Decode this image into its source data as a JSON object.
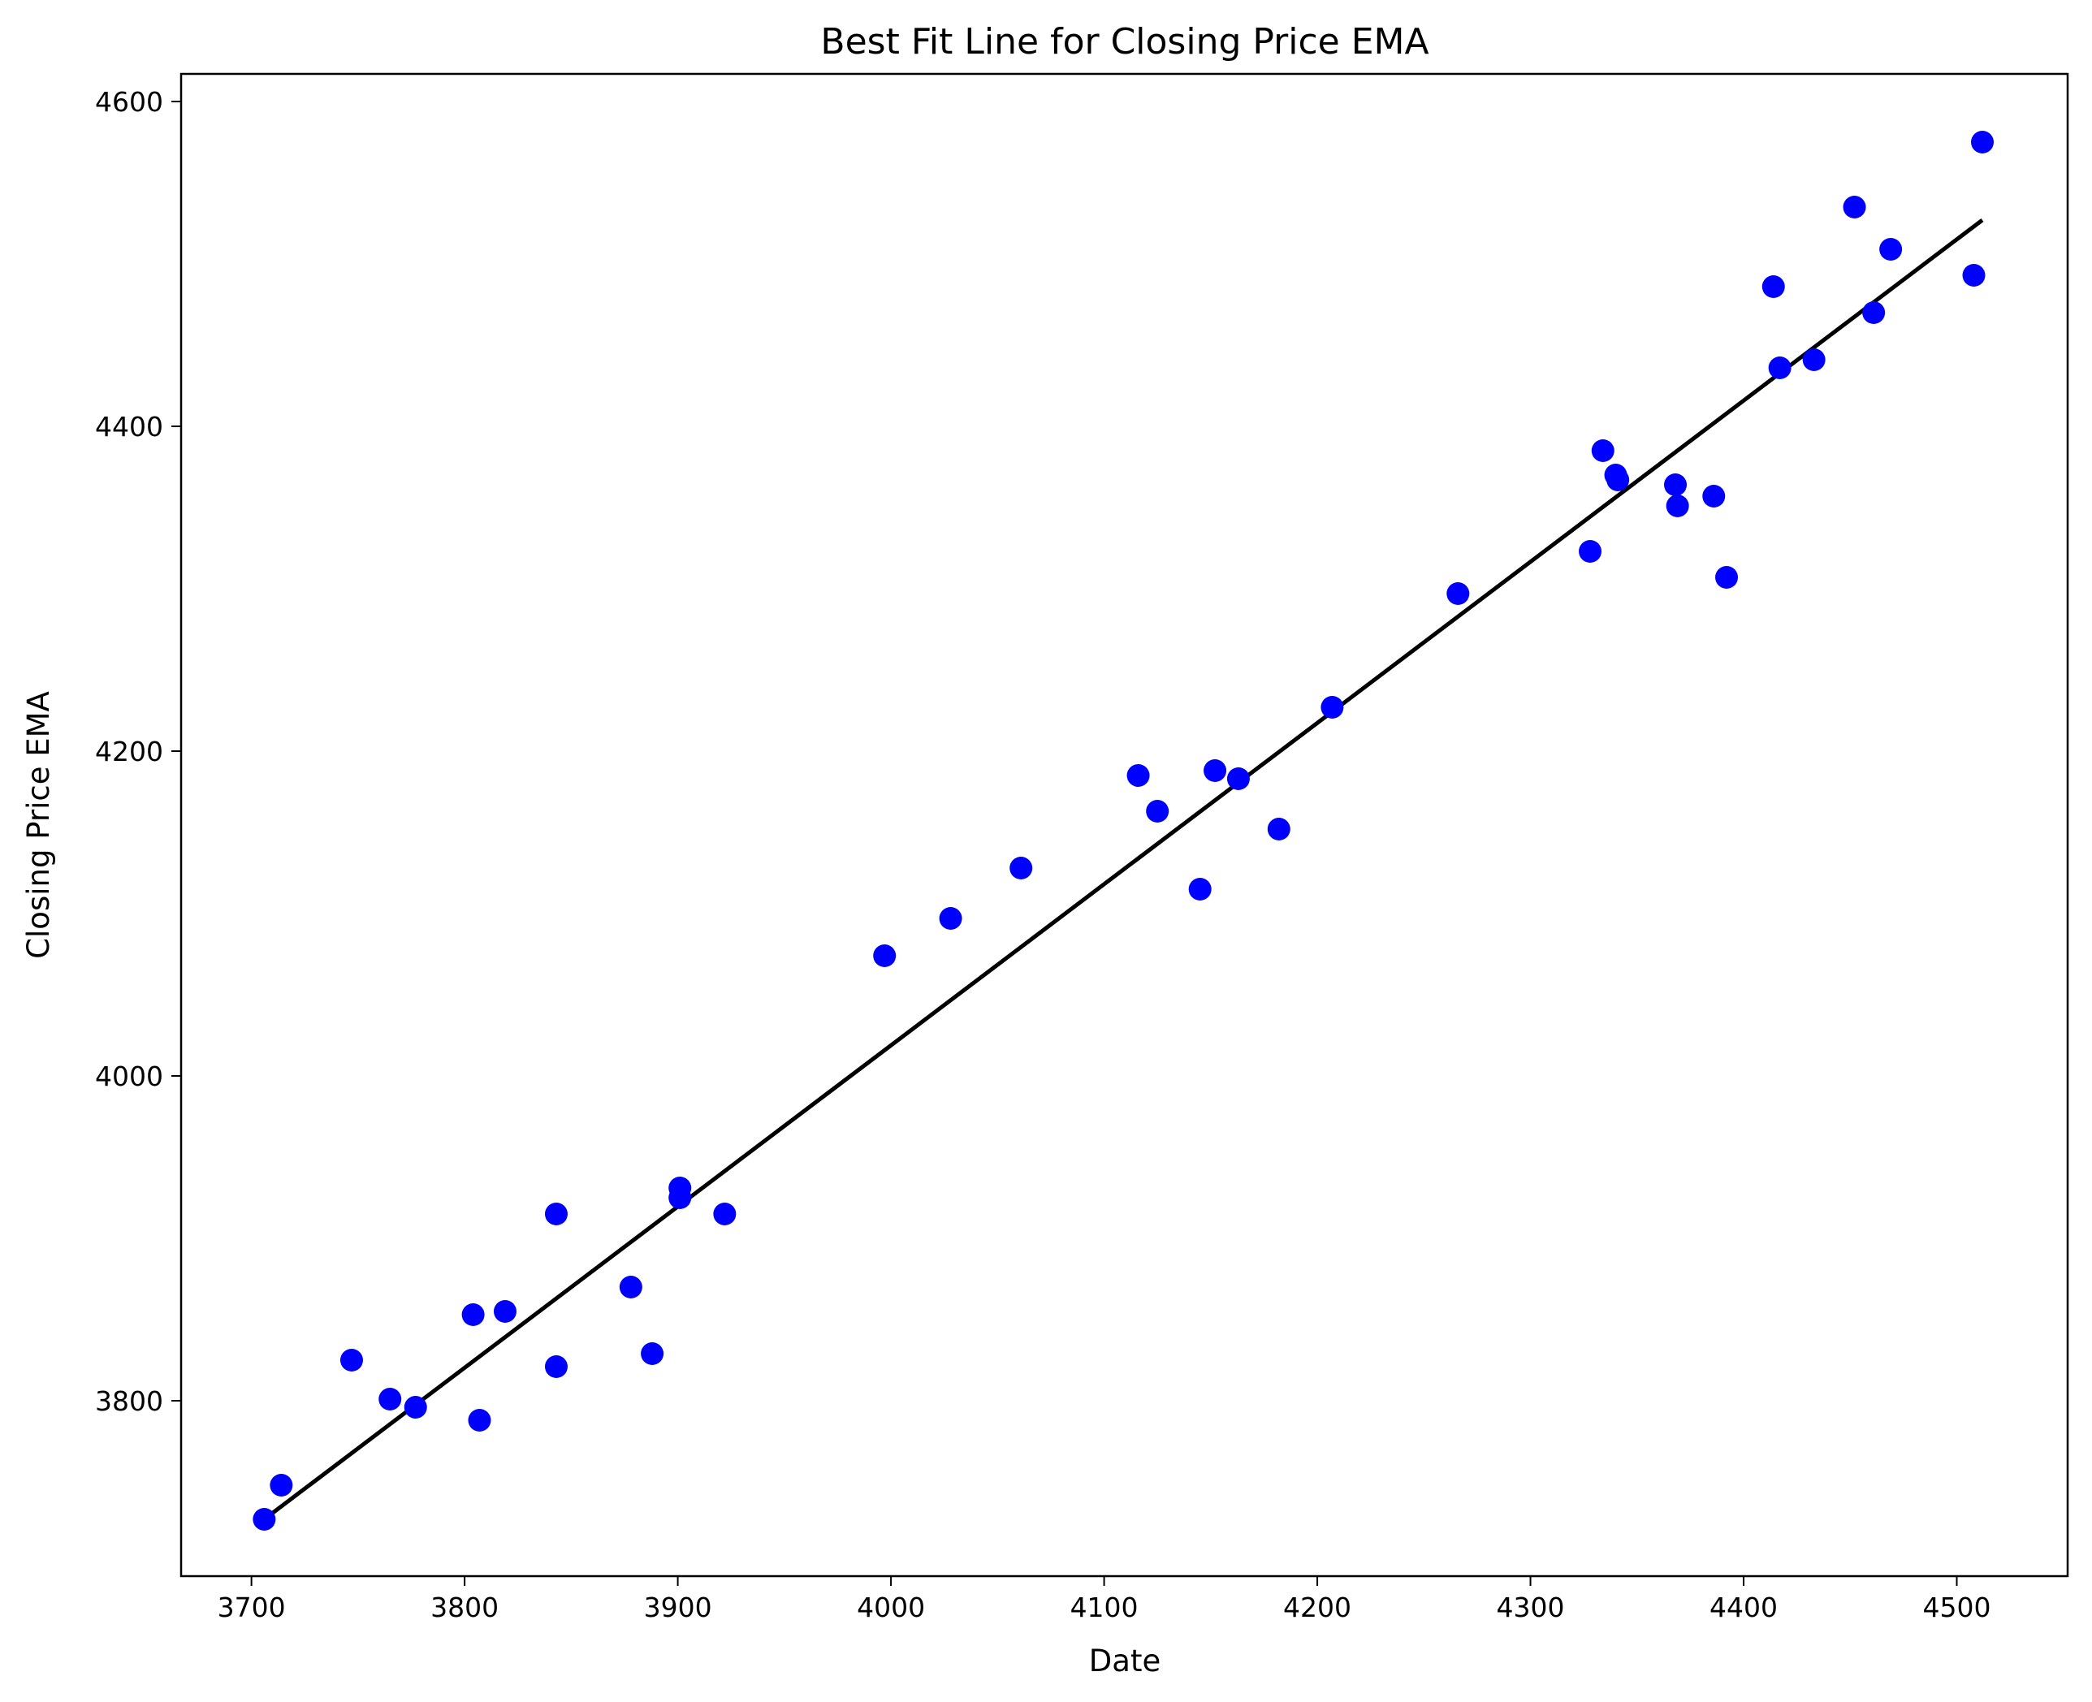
{
  "chart_data": {
    "type": "scatter",
    "title": "Best Fit Line for Closing Price EMA",
    "xlabel": "Date",
    "ylabel": "Closing Price EMA",
    "xlim": [
      3667,
      4552
    ],
    "ylim": [
      3692,
      4617
    ],
    "xticks": [
      3700,
      3800,
      3900,
      4000,
      4100,
      4200,
      4300,
      4400,
      4500
    ],
    "yticks": [
      3800,
      4000,
      4200,
      4400,
      4600
    ],
    "grid": false,
    "point_color": "#0000ff",
    "line_color": "#000000",
    "points": [
      {
        "x": 3706,
        "y": 3727
      },
      {
        "x": 3714,
        "y": 3748
      },
      {
        "x": 3747,
        "y": 3825
      },
      {
        "x": 3765,
        "y": 3801
      },
      {
        "x": 3777,
        "y": 3796
      },
      {
        "x": 3804,
        "y": 3853
      },
      {
        "x": 3807,
        "y": 3788
      },
      {
        "x": 3819,
        "y": 3855
      },
      {
        "x": 3843,
        "y": 3915
      },
      {
        "x": 3843,
        "y": 3821
      },
      {
        "x": 3878,
        "y": 3870
      },
      {
        "x": 3888,
        "y": 3829
      },
      {
        "x": 3901,
        "y": 3931
      },
      {
        "x": 3901,
        "y": 3925
      },
      {
        "x": 3922,
        "y": 3915
      },
      {
        "x": 3997,
        "y": 4074
      },
      {
        "x": 4028,
        "y": 4097
      },
      {
        "x": 4061,
        "y": 4128
      },
      {
        "x": 4116,
        "y": 4185
      },
      {
        "x": 4125,
        "y": 4163
      },
      {
        "x": 4145,
        "y": 4115
      },
      {
        "x": 4152,
        "y": 4188
      },
      {
        "x": 4163,
        "y": 4183
      },
      {
        "x": 4182,
        "y": 4152
      },
      {
        "x": 4207,
        "y": 4227
      },
      {
        "x": 4266,
        "y": 4297
      },
      {
        "x": 4328,
        "y": 4323
      },
      {
        "x": 4334,
        "y": 4385
      },
      {
        "x": 4340,
        "y": 4370
      },
      {
        "x": 4341,
        "y": 4367
      },
      {
        "x": 4368,
        "y": 4364
      },
      {
        "x": 4369,
        "y": 4351
      },
      {
        "x": 4386,
        "y": 4357
      },
      {
        "x": 4392,
        "y": 4307
      },
      {
        "x": 4414,
        "y": 4486
      },
      {
        "x": 4417,
        "y": 4436
      },
      {
        "x": 4433,
        "y": 4441
      },
      {
        "x": 4452,
        "y": 4535
      },
      {
        "x": 4461,
        "y": 4470
      },
      {
        "x": 4469,
        "y": 4509
      },
      {
        "x": 4508,
        "y": 4493
      },
      {
        "x": 4512,
        "y": 4575
      }
    ],
    "fit_line": {
      "x": [
        3706,
        4512
      ],
      "y": [
        3727,
        4527
      ]
    }
  }
}
